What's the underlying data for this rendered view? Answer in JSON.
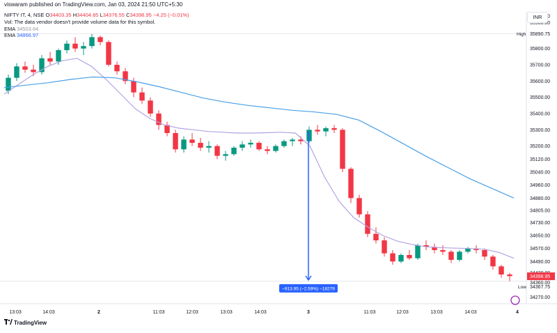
{
  "header": {
    "published": "viswaram published on TradingView.com, Jan 03, 2024 21:50 UTC+5:30"
  },
  "legend": {
    "symbol": "NIFTY IT, 4, NSE",
    "open_label": "O",
    "open": "34403.35",
    "high_label": "H",
    "high": "34404.85",
    "low_label": "L",
    "low": "34376.55",
    "close_label": "C",
    "close": "34398.95",
    "change": "−4.25 (−0.01%)",
    "vol_note": "Vol: The data vendor doesn't provide volume data for this symbol.",
    "ema_label_1": "EMA",
    "ema_value_1": "34503.64",
    "ema_label_2": "EMA",
    "ema_value_2": "34866.97"
  },
  "currency_button": "INR",
  "brand": "TradingView",
  "colors": {
    "up": "#089981",
    "down": "#f23645",
    "ema_fast": "#b2a3e3",
    "ema_slow": "#4a9fe8",
    "measure": "#2962ff",
    "grid": "#f0f3fa",
    "axis_text": "#131722"
  },
  "chart_data": {
    "type": "candlestick",
    "y_ticks": [
      36000,
      35960,
      35800,
      35700,
      35600,
      35500,
      35400,
      35300,
      35200,
      35120,
      35040,
      34960,
      34880,
      34805,
      34730,
      34650,
      34570,
      34490,
      34420,
      34360,
      34270
    ],
    "y_tick_labels": [
      "36000.00",
      "35960.00",
      "35800.00",
      "35700.00",
      "35600.00",
      "35500.00",
      "35400.00",
      "35300.00",
      "35200.00",
      "35120.00",
      "35040.00",
      "34960.00",
      "34880.00",
      "34805.00",
      "34730.00",
      "34650.00",
      "34570.00",
      "34490.00",
      "34420.00",
      "34360.00",
      "34270.00"
    ],
    "ylim": [
      34230,
      36030
    ],
    "x_tick_labels": [
      "13:03",
      "14:03",
      "2",
      "11:03",
      "12:03",
      "13:03",
      "14:03",
      "3",
      "11:03",
      "12:03",
      "13:03",
      "14:03",
      "4"
    ],
    "x_tick_bold": [
      false,
      false,
      true,
      false,
      false,
      false,
      false,
      true,
      false,
      false,
      false,
      false,
      true
    ],
    "high_marker": {
      "label": "High",
      "value": 35890.75,
      "text": "35890.75"
    },
    "low_marker": {
      "label": "Low",
      "value": 34367.75,
      "text": "34367.75"
    },
    "last_price": {
      "value": 34398.95,
      "text": "34398.95"
    },
    "measure": {
      "from": 35290,
      "to": 34376,
      "label": "−913.95 (−2.59%) −18279"
    },
    "ema_fast": [
      35520,
      35580,
      35640,
      35690,
      35725,
      35740,
      35690,
      35610,
      35520,
      35430,
      35370,
      35330,
      35310,
      35300,
      35290,
      35285,
      35280,
      35280,
      35282,
      35285,
      35280,
      35200,
      35010,
      34860,
      34760,
      34700,
      34650,
      34615,
      34595,
      34580,
      34575,
      34572,
      34570,
      34565,
      34545,
      34510
    ],
    "ema_slow": [
      35560,
      35575,
      35590,
      35610,
      35625,
      35620,
      35595,
      35565,
      35530,
      35495,
      35470,
      35450,
      35435,
      35420,
      35410,
      35395,
      35360,
      35290,
      35215,
      35140,
      35070,
      35000,
      34940,
      34880
    ],
    "candles": [
      [
        35540,
        35640,
        35520,
        35620
      ],
      [
        35620,
        35710,
        35600,
        35690
      ],
      [
        35690,
        35720,
        35650,
        35670
      ],
      [
        35670,
        35700,
        35630,
        35655
      ],
      [
        35655,
        35760,
        35640,
        35740
      ],
      [
        35740,
        35780,
        35700,
        35720
      ],
      [
        35720,
        35800,
        35700,
        35790
      ],
      [
        35790,
        35850,
        35770,
        35830
      ],
      [
        35830,
        35870,
        35780,
        35800
      ],
      [
        35800,
        35840,
        35760,
        35815
      ],
      [
        35815,
        35890,
        35800,
        35870
      ],
      [
        35870,
        35880,
        35820,
        35840
      ],
      [
        35840,
        35850,
        35690,
        35700
      ],
      [
        35700,
        35720,
        35640,
        35660
      ],
      [
        35660,
        35680,
        35580,
        35600
      ],
      [
        35600,
        35620,
        35500,
        35530
      ],
      [
        35530,
        35560,
        35460,
        35480
      ],
      [
        35480,
        35500,
        35380,
        35400
      ],
      [
        35400,
        35420,
        35300,
        35330
      ],
      [
        35330,
        35350,
        35260,
        35280
      ],
      [
        35280,
        35300,
        35160,
        35180
      ],
      [
        35180,
        35260,
        35160,
        35240
      ],
      [
        35240,
        35280,
        35200,
        35220
      ],
      [
        35220,
        35250,
        35170,
        35190
      ],
      [
        35190,
        35230,
        35160,
        35200
      ],
      [
        35200,
        35210,
        35120,
        35140
      ],
      [
        35140,
        35170,
        35110,
        35150
      ],
      [
        35150,
        35200,
        35140,
        35190
      ],
      [
        35190,
        35230,
        35170,
        35210
      ],
      [
        35210,
        35240,
        35190,
        35220
      ],
      [
        35220,
        35230,
        35170,
        35180
      ],
      [
        35180,
        35200,
        35150,
        35170
      ],
      [
        35170,
        35210,
        35160,
        35200
      ],
      [
        35200,
        35240,
        35190,
        35230
      ],
      [
        35230,
        35250,
        35200,
        35240
      ],
      [
        35240,
        35260,
        35210,
        35230
      ],
      [
        35230,
        35320,
        35220,
        35300
      ],
      [
        35300,
        35330,
        35270,
        35290
      ],
      [
        35290,
        35320,
        35260,
        35310
      ],
      [
        35310,
        35330,
        35280,
        35300
      ],
      [
        35300,
        35310,
        35040,
        35060
      ],
      [
        35060,
        35070,
        34850,
        34880
      ],
      [
        34880,
        34900,
        34760,
        34780
      ],
      [
        34780,
        34800,
        34640,
        34660
      ],
      [
        34660,
        34700,
        34600,
        34620
      ],
      [
        34620,
        34640,
        34520,
        34540
      ],
      [
        34540,
        34560,
        34470,
        34490
      ],
      [
        34490,
        34540,
        34480,
        34530
      ],
      [
        34530,
        34560,
        34500,
        34510
      ],
      [
        34510,
        34600,
        34500,
        34590
      ],
      [
        34590,
        34620,
        34560,
        34580
      ],
      [
        34580,
        34600,
        34540,
        34560
      ],
      [
        34560,
        34590,
        34530,
        34550
      ],
      [
        34550,
        34560,
        34480,
        34500
      ],
      [
        34500,
        34560,
        34490,
        34550
      ],
      [
        34550,
        34580,
        34540,
        34570
      ],
      [
        34570,
        34590,
        34540,
        34560
      ],
      [
        34560,
        34570,
        34500,
        34520
      ],
      [
        34520,
        34530,
        34440,
        34460
      ],
      [
        34460,
        34470,
        34390,
        34410
      ],
      [
        34410,
        34420,
        34370,
        34400
      ]
    ]
  }
}
